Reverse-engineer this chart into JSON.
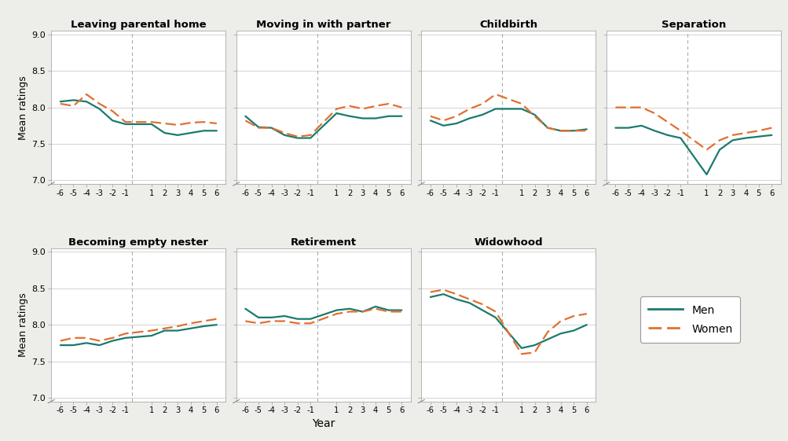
{
  "x_ticks": [
    -6,
    -5,
    -4,
    -3,
    -2,
    -1,
    1,
    2,
    3,
    4,
    5,
    6
  ],
  "x_values": [
    -6,
    -5,
    -4,
    -3,
    -2,
    -1,
    1,
    2,
    3,
    4,
    5,
    6
  ],
  "panels": [
    {
      "title": "Leaving parental home",
      "men": [
        8.08,
        8.1,
        8.08,
        7.98,
        7.82,
        7.77,
        7.77,
        7.65,
        7.62,
        7.65,
        7.68,
        7.68
      ],
      "women": [
        8.05,
        8.02,
        8.18,
        8.05,
        7.95,
        7.8,
        7.8,
        7.78,
        7.76,
        7.79,
        7.8,
        7.78
      ]
    },
    {
      "title": "Moving in with partner",
      "men": [
        7.88,
        7.73,
        7.72,
        7.62,
        7.58,
        7.58,
        7.92,
        7.88,
        7.85,
        7.85,
        7.88,
        7.88
      ],
      "women": [
        7.82,
        7.72,
        7.72,
        7.65,
        7.6,
        7.62,
        7.98,
        8.02,
        7.98,
        8.02,
        8.05,
        8.0
      ]
    },
    {
      "title": "Childbirth",
      "men": [
        7.82,
        7.75,
        7.78,
        7.85,
        7.9,
        7.98,
        7.98,
        7.9,
        7.72,
        7.68,
        7.68,
        7.7
      ],
      "women": [
        7.88,
        7.82,
        7.88,
        7.98,
        8.05,
        8.18,
        8.05,
        7.88,
        7.72,
        7.68,
        7.68,
        7.68
      ]
    },
    {
      "title": "Separation",
      "men": [
        7.72,
        7.72,
        7.75,
        7.68,
        7.62,
        7.58,
        7.08,
        7.42,
        7.55,
        7.58,
        7.6,
        7.62
      ],
      "women": [
        8.0,
        8.0,
        8.0,
        7.92,
        7.8,
        7.68,
        7.42,
        7.55,
        7.62,
        7.65,
        7.68,
        7.72
      ]
    },
    {
      "title": "Becoming empty nester",
      "men": [
        7.72,
        7.72,
        7.75,
        7.72,
        7.78,
        7.82,
        7.85,
        7.92,
        7.92,
        7.95,
        7.98,
        8.0
      ],
      "women": [
        7.78,
        7.82,
        7.82,
        7.78,
        7.82,
        7.88,
        7.92,
        7.95,
        7.98,
        8.02,
        8.05,
        8.08
      ]
    },
    {
      "title": "Retirement",
      "men": [
        8.22,
        8.1,
        8.1,
        8.12,
        8.08,
        8.08,
        8.2,
        8.22,
        8.18,
        8.25,
        8.2,
        8.2
      ],
      "women": [
        8.05,
        8.02,
        8.05,
        8.05,
        8.02,
        8.02,
        8.15,
        8.18,
        8.18,
        8.22,
        8.18,
        8.18
      ]
    },
    {
      "title": "Widowhood",
      "men": [
        8.38,
        8.42,
        8.35,
        8.3,
        8.2,
        8.1,
        7.68,
        7.72,
        7.8,
        7.88,
        7.92,
        8.0
      ],
      "women": [
        8.45,
        8.48,
        8.42,
        8.35,
        8.28,
        8.18,
        7.6,
        7.62,
        7.9,
        8.05,
        8.12,
        8.15
      ]
    }
  ],
  "men_color": "#1a7a6e",
  "women_color": "#e07030",
  "ylim": [
    6.95,
    9.05
  ],
  "yticks": [
    7.0,
    7.5,
    8.0,
    8.5,
    9.0
  ],
  "ytick_labels": [
    "7.0",
    "7.5",
    "8.0",
    "8.5",
    "9.0"
  ],
  "ylabel": "Mean ratings",
  "xlabel": "Year",
  "bg_color": "#ededea",
  "plot_bg": "#ffffff",
  "grid_color": "#cccccc",
  "spine_color": "#aaaaaa",
  "vline_color": "#aaaaaa"
}
